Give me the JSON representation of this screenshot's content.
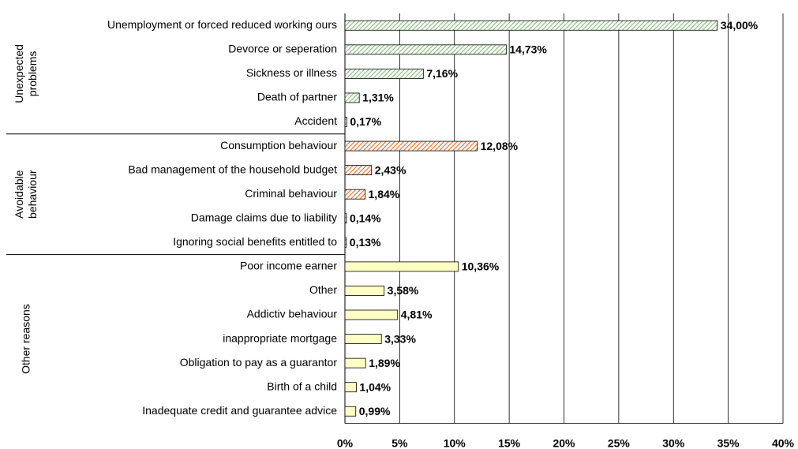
{
  "chart_data": {
    "type": "bar",
    "orientation": "horizontal",
    "groups": [
      {
        "label_lines": [
          "Unexpected",
          "problems"
        ],
        "color": "#7fbf73",
        "pattern": "hatch",
        "categories": [
          "Unemployment or forced reduced working ours",
          "Devorce or seperation",
          "Sickness or illness",
          "Death of partner",
          "Accident"
        ],
        "values": [
          34.0,
          14.73,
          7.16,
          1.31,
          0.17
        ],
        "value_labels": [
          "34,00%",
          "14,73%",
          "7,16%",
          "1,31%",
          "0,17%"
        ]
      },
      {
        "label_lines": [
          "Avoidable",
          "behaviour"
        ],
        "color": "#f26b21",
        "pattern": "hatch",
        "categories": [
          "Consumption behaviour",
          "Bad management of the household budget",
          "Criminal behaviour",
          "Damage claims due to liability",
          "Ignoring social benefits entitled to"
        ],
        "values": [
          12.08,
          2.43,
          1.84,
          0.14,
          0.13
        ],
        "value_labels": [
          "12,08%",
          "2,43%",
          "1,84%",
          "0,14%",
          "0,13%"
        ]
      },
      {
        "label_lines": [
          "Other reasons"
        ],
        "color": "#ffffc4",
        "pattern": "solid",
        "categories": [
          "Poor income earner",
          "Other",
          "Addictiv behaviour",
          "inappropriate mortgage",
          "Obligation to pay as a guarantor",
          "Birth of a child",
          "Inadequate credit and guarantee advice"
        ],
        "values": [
          10.36,
          3.58,
          4.81,
          3.33,
          1.89,
          1.04,
          0.99
        ],
        "value_labels": [
          "10,36%",
          "3,58%",
          "4,81%",
          "3,33%",
          "1,89%",
          "1,04%",
          "0,99%"
        ]
      }
    ],
    "xlim": [
      0,
      40
    ],
    "xticks": [
      {
        "value": 0,
        "label": "0%"
      },
      {
        "value": 5,
        "label": "5%"
      },
      {
        "value": 10,
        "label": "10%"
      },
      {
        "value": 15,
        "label": "15%"
      },
      {
        "value": 20,
        "label": "20%"
      },
      {
        "value": 25,
        "label": "25%"
      },
      {
        "value": 30,
        "label": "30%"
      },
      {
        "value": 35,
        "label": "35%"
      },
      {
        "value": 40,
        "label": "40%"
      }
    ],
    "grid": true
  }
}
